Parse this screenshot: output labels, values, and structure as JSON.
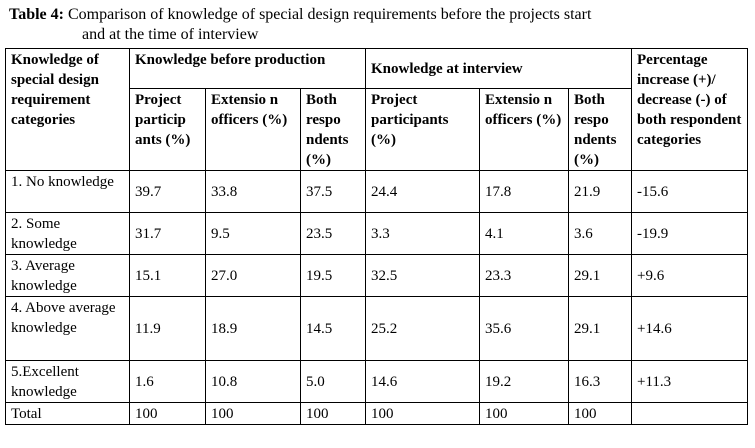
{
  "caption": {
    "label": "Table 4:",
    "line1": " Comparison of knowledge of special design requirements before the projects start",
    "line2": "and at the time of interview"
  },
  "header": {
    "category": "Knowledge of special design requirement categories",
    "group_before": "Knowledge before production",
    "group_interview": "Knowledge at interview",
    "pct_change": "Percentage increase (+)/ decrease (-) of both respondent categories",
    "sub_before": [
      "Project particip ants (%)",
      "Extensio n officers (%)",
      "Both respo ndents (%)"
    ],
    "sub_interview": [
      "Project participants (%)",
      "Extensio n officers (%)",
      "Both respo ndents (%)"
    ]
  },
  "rows": [
    {
      "category": "1. No knowledge",
      "values": [
        "39.7",
        "33.8",
        "37.5",
        "24.4",
        "17.8",
        "21.9",
        "-15.6"
      ]
    },
    {
      "category": "2. Some knowledge",
      "values": [
        "31.7",
        "9.5",
        "23.5",
        "3.3",
        "4.1",
        "3.6",
        "-19.9"
      ]
    },
    {
      "category": "3. Average knowledge",
      "values": [
        "15.1",
        "27.0",
        "19.5",
        "32.5",
        "23.3",
        "29.1",
        "+9.6"
      ]
    },
    {
      "category": "4. Above average knowledge",
      "values": [
        "11.9",
        "18.9",
        "14.5",
        "25.2",
        "35.6",
        "29.1",
        "+14.6"
      ]
    },
    {
      "category": "5.Excellent knowledge",
      "values": [
        "1.6",
        "10.8",
        "5.0",
        "14.6",
        "19.2",
        "16.3",
        "+11.3"
      ]
    },
    {
      "category": "Total",
      "values": [
        "100",
        "100",
        "100",
        "100",
        "100",
        "100",
        ""
      ]
    }
  ]
}
